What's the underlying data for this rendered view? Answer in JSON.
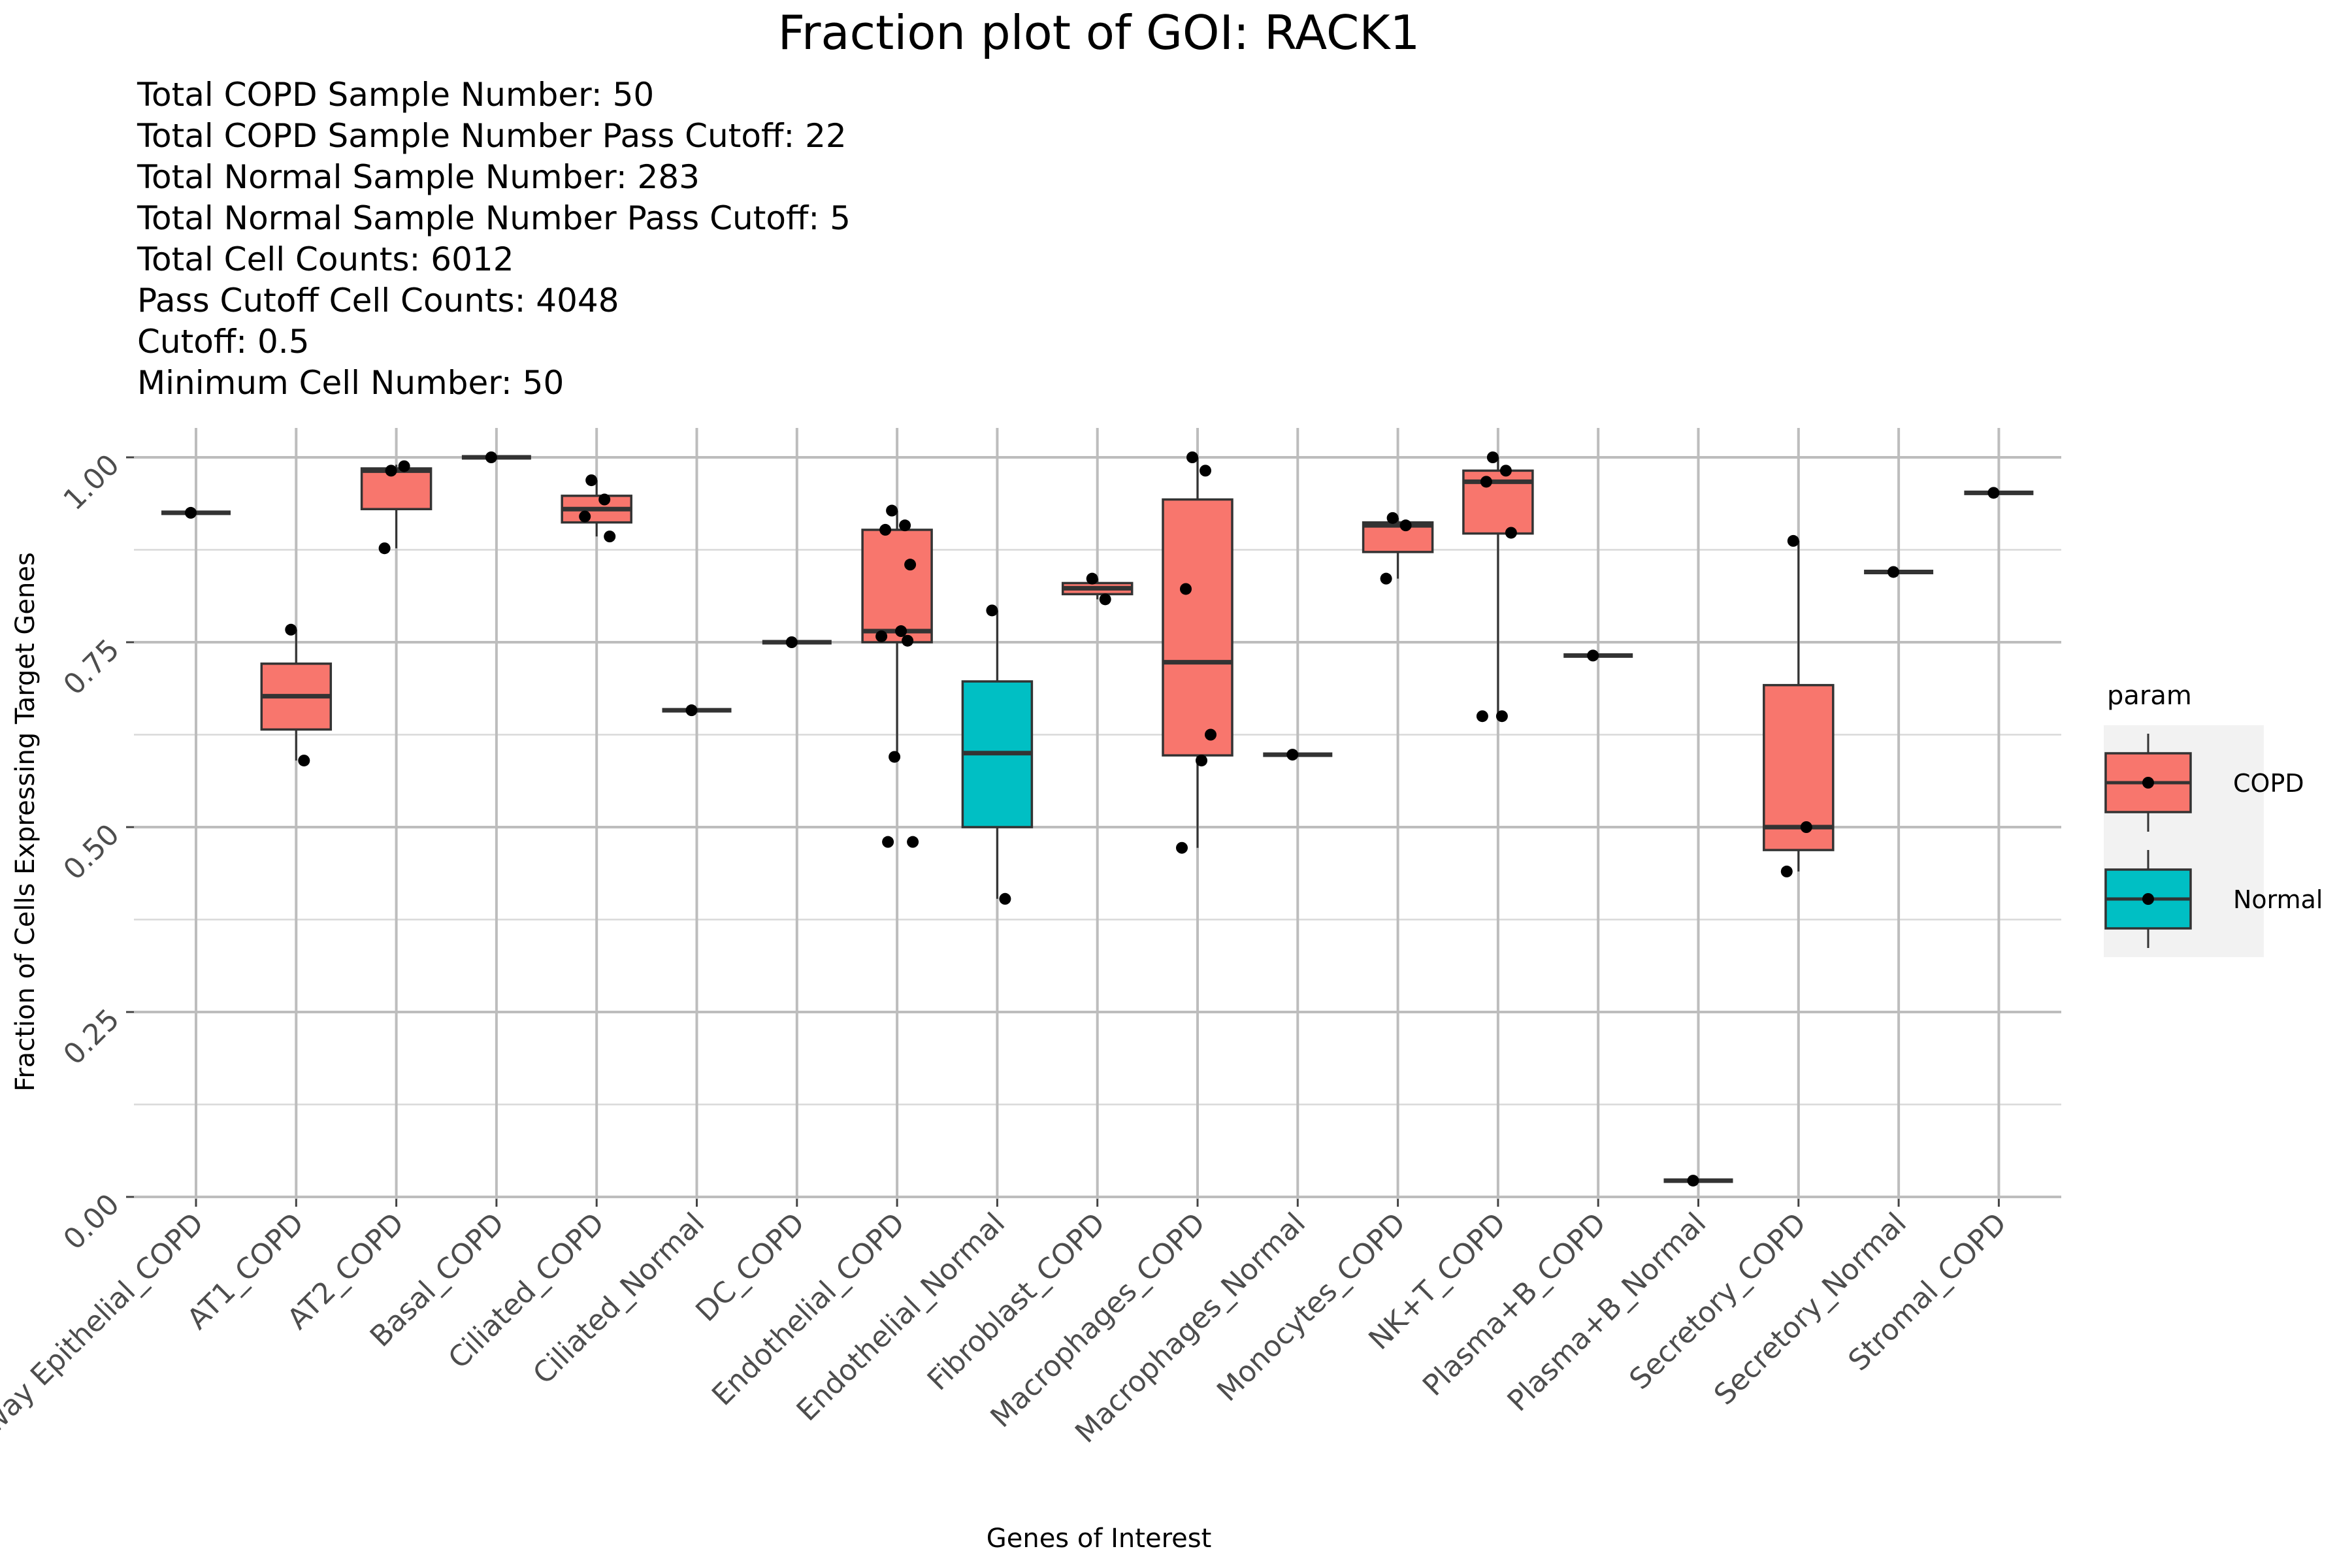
{
  "chart_data": {
    "type": "box",
    "title": "Fraction plot of GOI: RACK1",
    "subtitle_lines": [
      "Total COPD Sample Number: 50",
      "Total COPD Sample Number Pass Cutoff: 22",
      "Total Normal Sample Number: 283",
      "Total Normal Sample Number Pass Cutoff: 5",
      "Total Cell Counts: 6012",
      "Pass Cutoff Cell Counts: 4048",
      "Cutoff: 0.5",
      "Minimum Cell Number: 50"
    ],
    "xlabel": "Genes of Interest",
    "ylabel": "Fraction of Cells Expressing Target Genes",
    "ylim": [
      0,
      1
    ],
    "y_ticks": [
      "0.00",
      "0.25",
      "0.50",
      "0.75",
      "1.00"
    ],
    "grid": true,
    "legend": {
      "title": "param",
      "placement": "right",
      "entries": [
        {
          "label": "COPD",
          "color": "#F8766D"
        },
        {
          "label": "Normal",
          "color": "#00BFC4"
        }
      ]
    },
    "categories": [
      "Airway Epithelial_COPD",
      "AT1_COPD",
      "AT2_COPD",
      "Basal_COPD",
      "Ciliated_COPD",
      "Ciliated_Normal",
      "DC_COPD",
      "Endothelial_COPD",
      "Endothelial_Normal",
      "Fibroblast_COPD",
      "Macrophages_COPD",
      "Macrophages_Normal",
      "Monocytes_COPD",
      "NK+T_COPD",
      "Plasma+B_COPD",
      "Plasma+B_Normal",
      "Secretory_COPD",
      "Secretory_Normal",
      "Stromal_COPD"
    ],
    "boxes": [
      {
        "group": "COPD",
        "q1": 0.925,
        "median": 0.925,
        "q3": 0.925,
        "whisker_low": 0.925,
        "whisker_high": 0.925,
        "points": [
          0.925
        ]
      },
      {
        "group": "COPD",
        "q1": 0.632,
        "median": 0.677,
        "q3": 0.721,
        "whisker_low": 0.59,
        "whisker_high": 0.767,
        "points": [
          0.767,
          0.59
        ]
      },
      {
        "group": "COPD",
        "q1": 0.93,
        "median": 0.982,
        "q3": 0.985,
        "whisker_low": 0.877,
        "whisker_high": 0.99,
        "points": [
          0.982,
          0.988,
          0.877
        ]
      },
      {
        "group": "COPD",
        "q1": 1.0,
        "median": 1.0,
        "q3": 1.0,
        "whisker_low": 1.0,
        "whisker_high": 1.0,
        "points": [
          1.0
        ]
      },
      {
        "group": "COPD",
        "q1": 0.912,
        "median": 0.93,
        "q3": 0.948,
        "whisker_low": 0.893,
        "whisker_high": 0.969,
        "points": [
          0.969,
          0.943,
          0.92,
          0.893
        ]
      },
      {
        "group": "Normal",
        "q1": 0.658,
        "median": 0.658,
        "q3": 0.658,
        "whisker_low": 0.658,
        "whisker_high": 0.658,
        "points": [
          0.658
        ]
      },
      {
        "group": "COPD",
        "q1": 0.75,
        "median": 0.75,
        "q3": 0.75,
        "whisker_low": 0.75,
        "whisker_high": 0.75,
        "points": [
          0.75
        ]
      },
      {
        "group": "COPD",
        "q1": 0.75,
        "median": 0.765,
        "q3": 0.902,
        "whisker_low": 0.595,
        "whisker_high": 0.928,
        "points": [
          0.928,
          0.908,
          0.902,
          0.855,
          0.765,
          0.758,
          0.752,
          0.595,
          0.48,
          0.48
        ]
      },
      {
        "group": "Normal",
        "q1": 0.5,
        "median": 0.6,
        "q3": 0.697,
        "whisker_low": 0.403,
        "whisker_high": 0.793,
        "points": [
          0.793,
          0.403
        ]
      },
      {
        "group": "COPD",
        "q1": 0.815,
        "median": 0.823,
        "q3": 0.83,
        "whisker_low": 0.808,
        "whisker_high": 0.836,
        "points": [
          0.836,
          0.808
        ]
      },
      {
        "group": "COPD",
        "q1": 0.597,
        "median": 0.723,
        "q3": 0.943,
        "whisker_low": 0.472,
        "whisker_high": 1.0,
        "points": [
          1.0,
          0.982,
          0.822,
          0.625,
          0.59,
          0.472
        ]
      },
      {
        "group": "Normal",
        "q1": 0.598,
        "median": 0.598,
        "q3": 0.598,
        "whisker_low": 0.598,
        "whisker_high": 0.598,
        "points": [
          0.598
        ]
      },
      {
        "group": "COPD",
        "q1": 0.872,
        "median": 0.908,
        "q3": 0.912,
        "whisker_low": 0.836,
        "whisker_high": 0.918,
        "points": [
          0.918,
          0.908,
          0.836
        ]
      },
      {
        "group": "COPD",
        "q1": 0.897,
        "median": 0.967,
        "q3": 0.982,
        "whisker_low": 0.65,
        "whisker_high": 1.0,
        "points": [
          1.0,
          0.982,
          0.967,
          0.898,
          0.65,
          0.65
        ]
      },
      {
        "group": "COPD",
        "q1": 0.732,
        "median": 0.732,
        "q3": 0.732,
        "whisker_low": 0.732,
        "whisker_high": 0.732,
        "points": [
          0.732
        ]
      },
      {
        "group": "Normal",
        "q1": 0.022,
        "median": 0.022,
        "q3": 0.022,
        "whisker_low": 0.022,
        "whisker_high": 0.022,
        "points": [
          0.022
        ]
      },
      {
        "group": "COPD",
        "q1": 0.469,
        "median": 0.5,
        "q3": 0.692,
        "whisker_low": 0.44,
        "whisker_high": 0.887,
        "points": [
          0.887,
          0.5,
          0.44
        ]
      },
      {
        "group": "Normal",
        "q1": 0.845,
        "median": 0.845,
        "q3": 0.845,
        "whisker_low": 0.845,
        "whisker_high": 0.845,
        "points": [
          0.845
        ]
      },
      {
        "group": "COPD",
        "q1": 0.952,
        "median": 0.952,
        "q3": 0.952,
        "whisker_low": 0.952,
        "whisker_high": 0.952,
        "points": [
          0.952
        ]
      }
    ]
  }
}
